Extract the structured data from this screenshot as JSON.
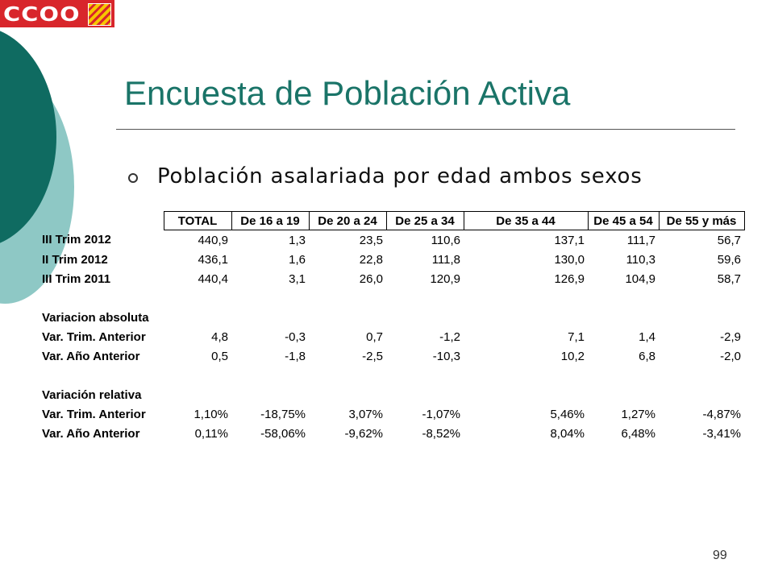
{
  "logo": {
    "text": "CCOO"
  },
  "title": "Encuesta de Población Activa",
  "subtitle": "Población asalariada por edad ambos sexos",
  "table": {
    "headers": [
      "TOTAL",
      "De 16 a 19",
      "De 20 a 24",
      "De 25 a 34",
      "De 35 a 44",
      "De 45 a 54",
      "De 55 y más"
    ],
    "rows": [
      {
        "label": "III Trim 2012",
        "values": [
          "440,9",
          "1,3",
          "23,5",
          "110,6",
          "137,1",
          "111,7",
          "56,7"
        ]
      },
      {
        "label": "II Trim 2012",
        "values": [
          "436,1",
          "1,6",
          "22,8",
          "111,8",
          "130,0",
          "110,3",
          "59,6"
        ]
      },
      {
        "label": "III Trim 2011",
        "values": [
          "440,4",
          "3,1",
          "26,0",
          "120,9",
          "126,9",
          "104,9",
          "58,7"
        ]
      },
      {
        "label": "",
        "values": [
          "",
          "",
          "",
          "",
          "",
          "",
          ""
        ]
      },
      {
        "label": "Variacion absoluta",
        "values": [
          "",
          "",
          "",
          "",
          "",
          "",
          ""
        ]
      },
      {
        "label": "Var. Trim. Anterior",
        "values": [
          "4,8",
          "-0,3",
          "0,7",
          "-1,2",
          "7,1",
          "1,4",
          "-2,9"
        ]
      },
      {
        "label": "Var. Año Anterior",
        "values": [
          "0,5",
          "-1,8",
          "-2,5",
          "-10,3",
          "10,2",
          "6,8",
          "-2,0"
        ]
      },
      {
        "label": "",
        "values": [
          "",
          "",
          "",
          "",
          "",
          "",
          ""
        ]
      },
      {
        "label": "Variación relativa",
        "values": [
          "",
          "",
          "",
          "",
          "",
          "",
          ""
        ]
      },
      {
        "label": "Var. Trim. Anterior",
        "values": [
          "1,10%",
          "-18,75%",
          "3,07%",
          "-1,07%",
          "5,46%",
          "1,27%",
          "-4,87%"
        ]
      },
      {
        "label": "Var. Año Anterior",
        "values": [
          "0,11%",
          "-58,06%",
          "-9,62%",
          "-8,52%",
          "8,04%",
          "6,48%",
          "-3,41%"
        ]
      }
    ]
  },
  "page_number": "99",
  "colors": {
    "title": "#1a7468",
    "dark_teal": "#0f6b61",
    "light_teal": "#8ec8c5",
    "logo_red": "#d8262b"
  }
}
